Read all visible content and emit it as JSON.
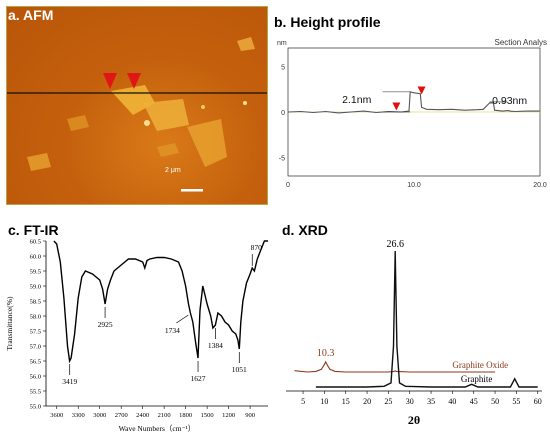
{
  "panels": {
    "afm": {
      "title": "a. AFM",
      "scale_label": "2 μm"
    },
    "height": {
      "title": "b. Height profile"
    },
    "ftir": {
      "title": "c. FT-IR"
    },
    "xrd": {
      "title": "d. XRD"
    }
  },
  "chart_data": [
    {
      "type": "line",
      "panel": "b. Height profile",
      "title": "",
      "header_right": "Section Analys",
      "ylabel": "nm",
      "xlabel": "",
      "x_ticks": [
        "0",
        "10.0",
        "20.0"
      ],
      "y_ticks": [
        "5",
        "0",
        "-5"
      ],
      "xlim": [
        0,
        20
      ],
      "ylim": [
        -7,
        7
      ],
      "grid": false,
      "colors": {
        "line": "#555555",
        "marker": "#e01010",
        "baseline": "#e8e0a0"
      },
      "annotations": [
        "2.1nm",
        "0.93nm"
      ],
      "series": [
        {
          "x": [
            0,
            1,
            2,
            3,
            4,
            5,
            6,
            7,
            8,
            9,
            9.6,
            9.7,
            10,
            10.5,
            10.6,
            11,
            12,
            13,
            14,
            15,
            15.5,
            16,
            16.3,
            16.4,
            17,
            17.5,
            17.6,
            18,
            19,
            20
          ],
          "y": [
            0,
            0.05,
            -0.05,
            0.05,
            -0.1,
            0,
            0.1,
            -0.05,
            0.05,
            0,
            0.1,
            2.2,
            2.1,
            2.0,
            0.5,
            0.3,
            0.25,
            0.3,
            0.2,
            0.25,
            0.3,
            1.0,
            1.0,
            0.2,
            0.1,
            0.15,
            0.1,
            0.05,
            0.1,
            0.1
          ]
        }
      ],
      "markers_x": [
        8.6,
        10.6
      ]
    },
    {
      "type": "line",
      "panel": "c. FT-IR",
      "title": "",
      "xlabel": "Wave Numbers（cm⁻¹）",
      "ylabel": "Transmittance(%)",
      "xlim": [
        3600,
        600
      ],
      "ylim": [
        55.0,
        60.5
      ],
      "x_ticks": [
        3600,
        3300,
        3000,
        2700,
        2400,
        2100,
        1800,
        1500,
        1200,
        900
      ],
      "y_ticks": [
        55.0,
        55.5,
        56.0,
        56.5,
        57.0,
        57.5,
        58.0,
        58.5,
        59.0,
        59.5,
        60.0,
        60.5
      ],
      "grid": false,
      "peak_labels": [
        {
          "x": 3419,
          "label": "3419"
        },
        {
          "x": 2925,
          "label": "2925"
        },
        {
          "x": 1734,
          "label": "1734"
        },
        {
          "x": 1627,
          "label": "1627"
        },
        {
          "x": 1384,
          "label": "1384"
        },
        {
          "x": 1051,
          "label": "1051"
        },
        {
          "x": 870,
          "label": "870"
        }
      ],
      "series": [
        {
          "x": [
            3640,
            3600,
            3550,
            3500,
            3450,
            3420,
            3400,
            3350,
            3300,
            3250,
            3200,
            3100,
            3000,
            2960,
            2925,
            2890,
            2850,
            2800,
            2750,
            2700,
            2650,
            2600,
            2500,
            2400,
            2370,
            2340,
            2300,
            2200,
            2100,
            2000,
            1900,
            1850,
            1800,
            1760,
            1734,
            1700,
            1660,
            1627,
            1600,
            1560,
            1500,
            1450,
            1420,
            1384,
            1350,
            1300,
            1250,
            1200,
            1150,
            1100,
            1070,
            1051,
            1030,
            1000,
            950,
            900,
            870,
            840,
            800,
            750,
            700,
            650
          ],
          "y": [
            60.6,
            60.4,
            59.8,
            58.6,
            57.0,
            56.5,
            56.6,
            57.4,
            58.6,
            59.3,
            59.5,
            59.4,
            59.2,
            58.9,
            58.4,
            58.9,
            59.2,
            59.5,
            59.6,
            59.7,
            59.8,
            59.9,
            59.9,
            59.8,
            59.6,
            59.85,
            59.9,
            59.95,
            59.95,
            59.9,
            59.8,
            59.5,
            59.0,
            58.4,
            58.1,
            57.8,
            57.1,
            56.6,
            58.2,
            59.0,
            58.4,
            58.0,
            57.6,
            57.7,
            58.1,
            58.0,
            57.8,
            57.7,
            57.5,
            57.4,
            57.2,
            56.9,
            57.8,
            58.5,
            59.1,
            59.4,
            59.6,
            59.5,
            59.9,
            60.2,
            60.5,
            60.6
          ]
        }
      ]
    },
    {
      "type": "line",
      "panel": "d. XRD",
      "title": "",
      "xlabel": "2θ",
      "ylabel": "",
      "xlim": [
        0,
        60
      ],
      "x_ticks": [
        5,
        10,
        15,
        20,
        25,
        30,
        35,
        40,
        45,
        50,
        55,
        60
      ],
      "grid": false,
      "peak_labels": [
        {
          "x": 26.6,
          "label": "26.6",
          "series": "Graphite"
        },
        {
          "x": 10.3,
          "label": "10.3",
          "series": "Graphite Oxide"
        }
      ],
      "colors": {
        "Graphite": "#111111",
        "Graphite Oxide": "#8b3a1a"
      },
      "series": [
        {
          "name": "Graphite Oxide",
          "x": [
            3,
            6,
            8,
            9.3,
            9.9,
            10.3,
            10.7,
            11.3,
            12.5,
            15,
            20,
            25,
            26.3,
            26.6,
            26.9,
            30,
            35,
            40,
            45,
            50
          ],
          "y": [
            0.12,
            0.11,
            0.115,
            0.13,
            0.16,
            0.185,
            0.16,
            0.13,
            0.115,
            0.11,
            0.11,
            0.11,
            0.115,
            0.118,
            0.115,
            0.11,
            0.11,
            0.11,
            0.11,
            0.11
          ]
        },
        {
          "name": "Graphite",
          "x": [
            8,
            15,
            20,
            24,
            25.6,
            26.2,
            26.6,
            27.0,
            27.6,
            29,
            35,
            40,
            43,
            44.5,
            46,
            50,
            53.6,
            54.6,
            55.6,
            57,
            60
          ],
          "y": [
            0.0,
            0.0,
            0.0,
            0.005,
            0.03,
            0.3,
            1.0,
            0.3,
            0.03,
            0.005,
            0.0,
            0.0,
            0.0,
            0.02,
            0.0,
            0.0,
            0.0,
            0.06,
            0.0,
            0.0,
            0.0
          ]
        }
      ]
    }
  ]
}
